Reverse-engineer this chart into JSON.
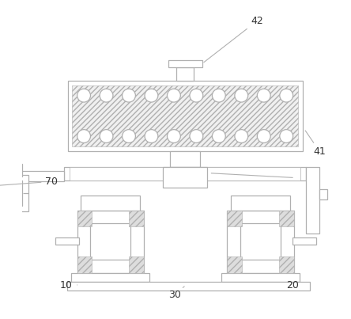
{
  "bg_color": "#ffffff",
  "line_color": "#b0b0b0",
  "label_color": "#333333",
  "fig_width": 4.44,
  "fig_height": 4.03,
  "dpi": 100
}
